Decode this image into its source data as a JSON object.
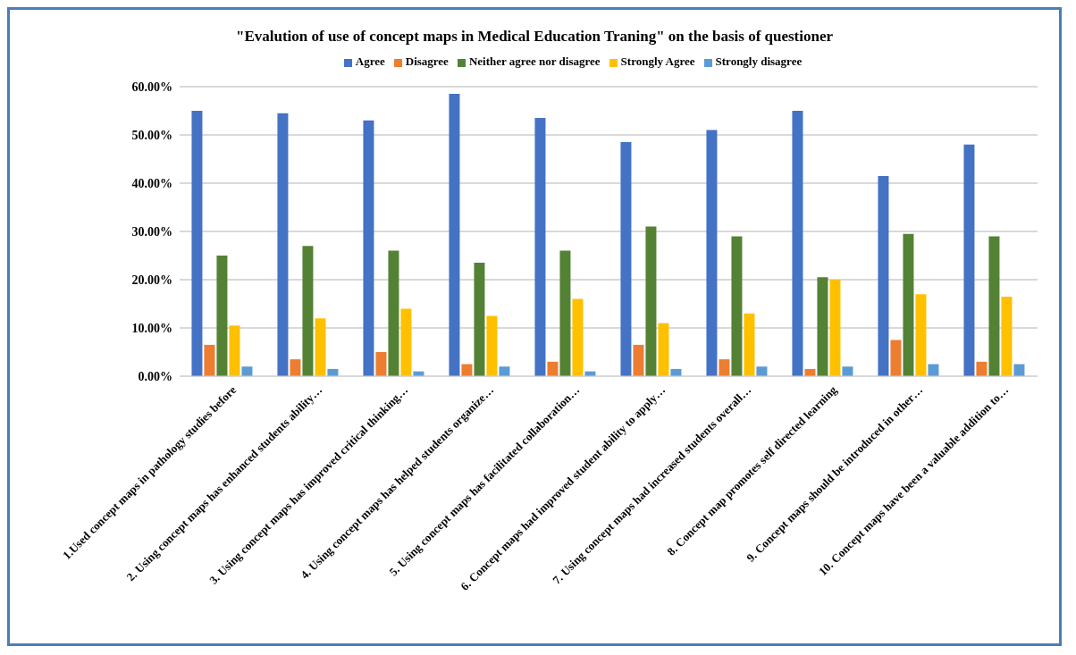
{
  "chart_data": {
    "type": "bar",
    "title": "\"Evalution of use of concept maps in Medical Education Traning\"  on the basis of questioner",
    "categories": [
      "1.Used concept maps in pathology studies before",
      "2. Using concept maps has enhanced  students ability…",
      "3. Using concept maps has improved critical thinking…",
      "4. Using concept maps has helped students organize…",
      "5. Using concept maps has facilitated collaboration…",
      "6. Concept maps had improved student ability to apply…",
      "7. Using concept maps had increased students overall…",
      "8. Concept map promotes self directed learning",
      "9. Concept maps should be introduced in other…",
      "10. Concept maps have been a valuable addition to…"
    ],
    "series": [
      {
        "name": "Agree",
        "color": "#4472c4",
        "values": [
          55,
          54.5,
          53,
          58.5,
          53.5,
          48.5,
          51,
          55,
          41.5,
          48
        ]
      },
      {
        "name": "Disagree",
        "color": "#ed7d31",
        "values": [
          6.5,
          3.5,
          5,
          2.5,
          3,
          6.5,
          3.5,
          1.5,
          7.5,
          3
        ]
      },
      {
        "name": "Neither agree nor disagree",
        "color": "#548235",
        "values": [
          25,
          27,
          26,
          23.5,
          26,
          31,
          29,
          20.5,
          29.5,
          29
        ]
      },
      {
        "name": "Strongly Agree",
        "color": "#ffc000",
        "values": [
          10.5,
          12,
          14,
          12.5,
          16,
          11,
          13,
          20,
          17,
          16.5
        ]
      },
      {
        "name": "Strongly disagree",
        "color": "#5b9bd5",
        "values": [
          2,
          1.5,
          1,
          2,
          1,
          1.5,
          2,
          2,
          2.5,
          2.5
        ]
      }
    ],
    "ylim": [
      0,
      60
    ],
    "yticks": [
      {
        "value": 0,
        "label": "0.00%"
      },
      {
        "value": 10,
        "label": "10.00%"
      },
      {
        "value": 20,
        "label": "20.00%"
      },
      {
        "value": 30,
        "label": "30.00%"
      },
      {
        "value": 40,
        "label": "40.00%"
      },
      {
        "value": 50,
        "label": "50.00%"
      },
      {
        "value": 60,
        "label": "60.00%"
      }
    ],
    "grid": "y",
    "legend": "top"
  }
}
